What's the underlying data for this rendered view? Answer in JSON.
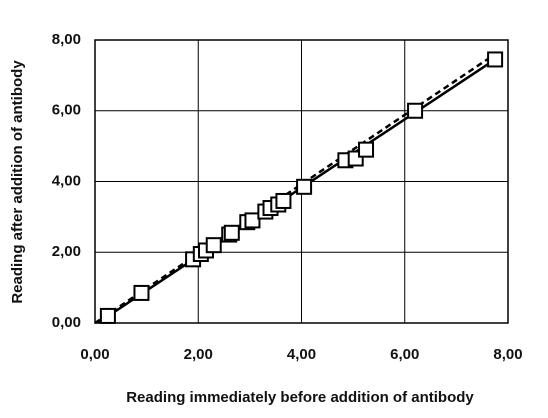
{
  "chart_data": {
    "type": "scatter",
    "x_label": "Reading immediately before addition of antibody",
    "y_label": "Reading after addition of antibody",
    "xlim": [
      0,
      8
    ],
    "ylim": [
      0,
      8
    ],
    "xticks": [
      {
        "value": 0,
        "label": "0,00"
      },
      {
        "value": 2,
        "label": "2,00"
      },
      {
        "value": 4,
        "label": "4,00"
      },
      {
        "value": 6,
        "label": "6,00"
      },
      {
        "value": 8,
        "label": "8,00"
      }
    ],
    "yticks": [
      {
        "value": 0,
        "label": "0,00"
      },
      {
        "value": 2,
        "label": "2,00"
      },
      {
        "value": 4,
        "label": "4,00"
      },
      {
        "value": 6,
        "label": "6,00"
      },
      {
        "value": 8,
        "label": "8,00"
      }
    ],
    "grid": true,
    "series": [
      {
        "type": "scatter",
        "color": "#000000",
        "x": [
          0.25,
          0.9,
          1.9,
          2.05,
          2.15,
          2.3,
          2.6,
          2.65,
          2.95,
          3.05,
          3.3,
          3.4,
          3.55,
          3.65,
          4.05,
          4.85,
          5.05,
          5.25,
          6.2,
          7.75
        ],
        "values": [
          0.2,
          0.85,
          1.8,
          1.95,
          2.05,
          2.2,
          2.5,
          2.55,
          2.85,
          2.9,
          3.15,
          3.25,
          3.35,
          3.45,
          3.85,
          4.6,
          4.65,
          4.9,
          6.0,
          7.45
        ]
      },
      {
        "type": "line",
        "color": "#000000",
        "dashed": false,
        "x": [
          0.05,
          7.75
        ],
        "values": [
          0,
          7.45
        ]
      },
      {
        "type": "line",
        "color": "#000000",
        "dashed": true,
        "x": [
          0,
          7.75
        ],
        "values": [
          0,
          7.6
        ]
      }
    ]
  }
}
